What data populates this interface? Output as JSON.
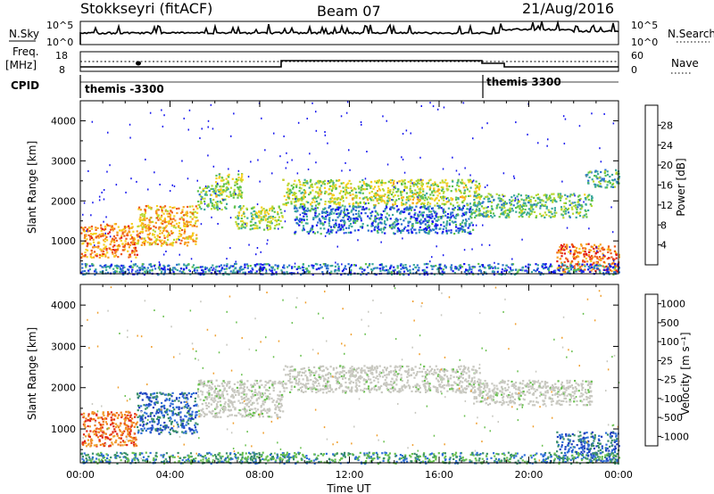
{
  "header": {
    "station": "Stokkseyri (fitACF)",
    "beam": "Beam 07",
    "date": "21/Aug/2016"
  },
  "strip_labels": {
    "nsky": "N.Sky",
    "nsearch": "N.Search",
    "freq_line1": "Freq.",
    "freq_line2": "[MHz]",
    "nave": "Nave",
    "cpid": "CPID"
  },
  "noise_axis": {
    "left_ticks": [
      "10^5",
      "10^0"
    ],
    "right_ticks": [
      "10^5",
      "10^0"
    ]
  },
  "freq_axis": {
    "left_ticks": [
      "18",
      "8"
    ],
    "right_ticks": [
      "60",
      "0"
    ]
  },
  "cpid_labels": [
    {
      "text": "themis -3300",
      "t_start_hours": 0
    },
    {
      "text": "themis 3300",
      "t_start_hours": 18
    }
  ],
  "chart_data": [
    {
      "type": "heatmap",
      "name": "power_panel",
      "quantity": "Power",
      "x": {
        "label": "Time UT",
        "min_hours": 0,
        "max_hours": 24,
        "tick_labels": [
          "00:00",
          "04:00",
          "08:00",
          "12:00",
          "16:00",
          "20:00",
          "00:00"
        ]
      },
      "y": {
        "label": "Slant Range [km]",
        "min": 180,
        "max": 4500,
        "ticks": [
          1000,
          2000,
          3000,
          4000
        ]
      },
      "colorbar": {
        "label": "Power [dB]",
        "ticks": [
          4,
          8,
          12,
          16,
          20,
          24,
          28
        ],
        "min": 0,
        "max": 32,
        "colors": [
          "#1515ee",
          "#2a6fd0",
          "#3aa89a",
          "#5ec24a",
          "#b8d832",
          "#f6d020",
          "#f8a020",
          "#ee5a18",
          "#e01818"
        ]
      },
      "scatter_regions": [
        {
          "t_hours": [
            0.0,
            2.5
          ],
          "range_km": [
            600,
            1450
          ],
          "value_db": 24
        },
        {
          "t_hours": [
            2.5,
            5.2
          ],
          "range_km": [
            900,
            1900
          ],
          "value_db": 22
        },
        {
          "t_hours": [
            5.2,
            6.5
          ],
          "range_km": [
            1800,
            2400
          ],
          "value_db": 12
        },
        {
          "t_hours": [
            6.0,
            7.2
          ],
          "range_km": [
            2100,
            2700
          ],
          "value_db": 16
        },
        {
          "t_hours": [
            6.8,
            9.0
          ],
          "range_km": [
            1300,
            1900
          ],
          "value_db": 15
        },
        {
          "t_hours": [
            9.0,
            17.8
          ],
          "range_km": [
            1900,
            2550
          ],
          "value_db": 16
        },
        {
          "t_hours": [
            9.5,
            17.5
          ],
          "range_km": [
            1200,
            1900
          ],
          "value_db": 6
        },
        {
          "t_hours": [
            17.5,
            22.8
          ],
          "range_km": [
            1600,
            2200
          ],
          "value_db": 12
        },
        {
          "t_hours": [
            22.5,
            24.0
          ],
          "range_km": [
            2350,
            2800
          ],
          "value_db": 10
        },
        {
          "t_hours": [
            21.2,
            24.0
          ],
          "range_km": [
            250,
            950
          ],
          "value_db": 26
        },
        {
          "t_hours": [
            0.0,
            24.0
          ],
          "range_km": [
            180,
            450
          ],
          "value_db": 6
        }
      ]
    },
    {
      "type": "heatmap",
      "name": "velocity_panel",
      "quantity": "Velocity",
      "x": {
        "label": "Time UT",
        "min_hours": 0,
        "max_hours": 24,
        "tick_labels": [
          "00:00",
          "04:00",
          "08:00",
          "12:00",
          "16:00",
          "20:00",
          "00:00"
        ]
      },
      "y": {
        "label": "Slant Range [km]",
        "min": 180,
        "max": 4500,
        "ticks": [
          1000,
          2000,
          3000,
          4000
        ]
      },
      "colorbar": {
        "label": "Velocity [m s⁻¹]",
        "ticks": [
          "1000",
          "500",
          "100",
          "25",
          "-25",
          "-100",
          "-500",
          "-1000"
        ],
        "colors": [
          "#1f3fbf",
          "#2f6fd8",
          "#3a8f6a",
          "#6ac050",
          "#c8c8c0",
          "#f0a030",
          "#f07818",
          "#e02818"
        ]
      },
      "scatter_regions": [
        {
          "t_hours": [
            0.0,
            2.5
          ],
          "range_km": [
            600,
            1450
          ],
          "value_class": "-500"
        },
        {
          "t_hours": [
            2.5,
            5.2
          ],
          "range_km": [
            900,
            1900
          ],
          "value_class": "500"
        },
        {
          "t_hours": [
            5.2,
            9.0
          ],
          "range_km": [
            1300,
            2200
          ],
          "value_class": "ground"
        },
        {
          "t_hours": [
            9.0,
            17.8
          ],
          "range_km": [
            1900,
            2550
          ],
          "value_class": "ground"
        },
        {
          "t_hours": [
            17.5,
            22.8
          ],
          "range_km": [
            1600,
            2200
          ],
          "value_class": "ground"
        },
        {
          "t_hours": [
            21.2,
            24.0
          ],
          "range_km": [
            250,
            950
          ],
          "value_class": "500"
        },
        {
          "t_hours": [
            0.0,
            24.0
          ],
          "range_km": [
            180,
            450
          ],
          "value_class": "100"
        }
      ]
    }
  ]
}
